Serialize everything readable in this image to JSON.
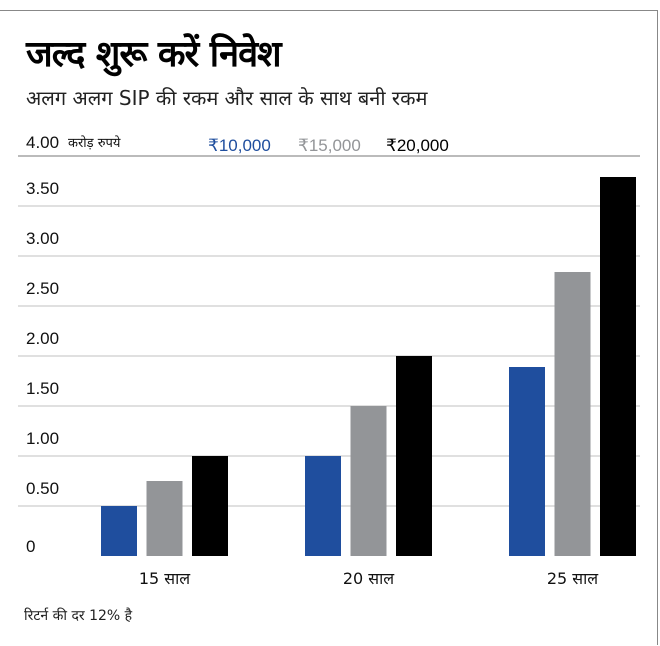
{
  "title": "जल्द शुरू करें निवेश",
  "subtitle": "अलग अलग SIP की रकम और साल के साथ बनी रकम",
  "footnote": "रिटर्न की दर 12% है",
  "chart_data": {
    "type": "bar",
    "title": "जल्द शुरू करें निवेश",
    "ylabel": "करोड़ रुपये",
    "categories": [
      "15 साल",
      "20 साल",
      "25 साल"
    ],
    "series": [
      {
        "name": "₹10,000",
        "color": "#1f4e9e",
        "values": [
          0.5,
          1.0,
          1.89
        ]
      },
      {
        "name": "₹15,000",
        "color": "#939598",
        "values": [
          0.75,
          1.5,
          2.84
        ]
      },
      {
        "name": "₹20,000",
        "color": "#000000",
        "values": [
          1.0,
          2.0,
          3.79
        ]
      }
    ],
    "yticks": [
      "0",
      "0.50",
      "1.00",
      "1.50",
      "2.00",
      "2.50",
      "3.00",
      "3.50",
      "4.00"
    ],
    "ylim": [
      0,
      4
    ],
    "legend_position": "top",
    "grid": true
  }
}
